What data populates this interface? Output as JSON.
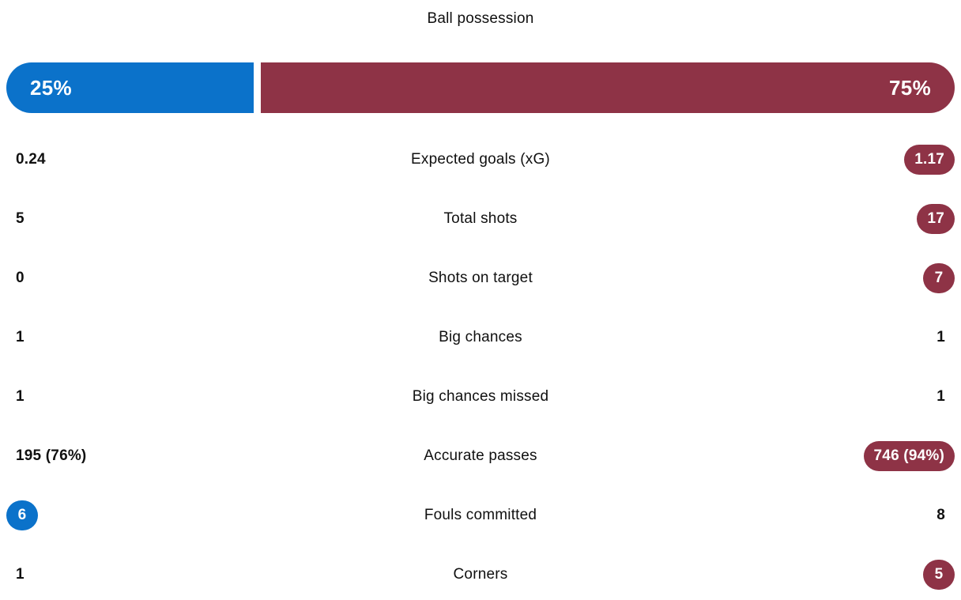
{
  "title": "Ball possession",
  "colors": {
    "home": "#0b72ca",
    "away": "#8e3346",
    "text": "#111111",
    "background": "#ffffff"
  },
  "possession": {
    "home_label": "25%",
    "away_label": "75%",
    "home_value": 25,
    "away_value": 75
  },
  "stats": [
    {
      "label": "Expected goals (xG)",
      "home": "0.24",
      "away": "1.17",
      "home_badge": false,
      "away_badge": true
    },
    {
      "label": "Total shots",
      "home": "5",
      "away": "17",
      "home_badge": false,
      "away_badge": true
    },
    {
      "label": "Shots on target",
      "home": "0",
      "away": "7",
      "home_badge": false,
      "away_badge": true
    },
    {
      "label": "Big chances",
      "home": "1",
      "away": "1",
      "home_badge": false,
      "away_badge": false
    },
    {
      "label": "Big chances missed",
      "home": "1",
      "away": "1",
      "home_badge": false,
      "away_badge": false
    },
    {
      "label": "Accurate passes",
      "home": "195 (76%)",
      "away": "746 (94%)",
      "home_badge": false,
      "away_badge": true
    },
    {
      "label": "Fouls committed",
      "home": "6",
      "away": "8",
      "home_badge": true,
      "away_badge": false
    },
    {
      "label": "Corners",
      "home": "1",
      "away": "5",
      "home_badge": false,
      "away_badge": true
    }
  ]
}
